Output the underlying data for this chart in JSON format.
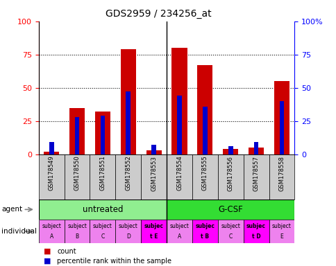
{
  "title": "GDS2959 / 234256_at",
  "samples": [
    "GSM178549",
    "GSM178550",
    "GSM178551",
    "GSM178552",
    "GSM178553",
    "GSM178554",
    "GSM178555",
    "GSM178556",
    "GSM178557",
    "GSM178558"
  ],
  "count_values": [
    2,
    35,
    32,
    79,
    3,
    80,
    67,
    4,
    5,
    55
  ],
  "percentile_values": [
    9,
    28,
    29,
    47,
    7,
    44,
    36,
    6,
    9,
    40
  ],
  "agent_groups": [
    {
      "label": "untreated",
      "start": 0,
      "end": 5,
      "color": "#90EE90"
    },
    {
      "label": "G-CSF",
      "start": 5,
      "end": 10,
      "color": "#33DD33"
    }
  ],
  "individual_labels": [
    [
      "subject",
      "A"
    ],
    [
      "subject",
      "B"
    ],
    [
      "subject",
      "C"
    ],
    [
      "subject",
      "D"
    ],
    [
      "subjec",
      "t E"
    ],
    [
      "subject",
      "A"
    ],
    [
      "subjec",
      "t B"
    ],
    [
      "subject",
      "C"
    ],
    [
      "subjec",
      "t D"
    ],
    [
      "subject",
      "E"
    ]
  ],
  "individual_colors": [
    "#EE82EE",
    "#EE82EE",
    "#EE82EE",
    "#EE82EE",
    "#FF00FF",
    "#EE82EE",
    "#FF00FF",
    "#EE82EE",
    "#FF00FF",
    "#EE82EE"
  ],
  "individual_bold": [
    4,
    6,
    8
  ],
  "bar_color": "#CC0000",
  "percentile_color": "#0000CC",
  "ylim": [
    0,
    100
  ],
  "yticks": [
    0,
    25,
    50,
    75,
    100
  ],
  "ytick_labels_left": [
    "0",
    "25",
    "50",
    "75",
    "100"
  ],
  "ytick_labels_right": [
    "0",
    "25",
    "50",
    "75",
    "100%"
  ],
  "tick_area_bg": "#CCCCCC",
  "background_color": "white",
  "legend_count_color": "#CC0000",
  "legend_percentile_color": "#0000CC"
}
